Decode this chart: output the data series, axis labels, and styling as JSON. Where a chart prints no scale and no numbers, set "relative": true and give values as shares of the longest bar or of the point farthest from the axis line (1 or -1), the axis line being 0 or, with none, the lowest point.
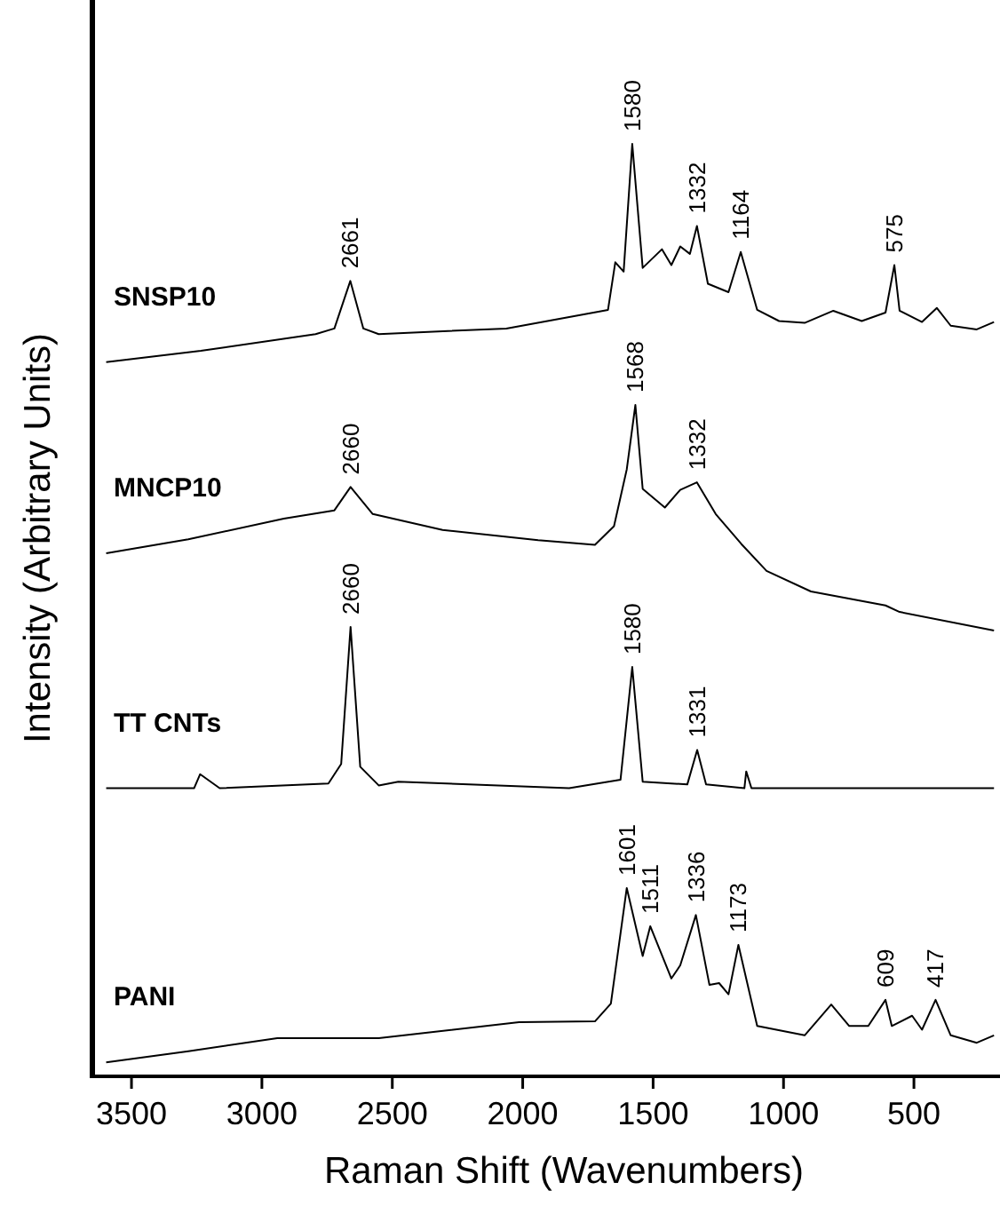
{
  "chart_data": {
    "type": "line",
    "relative": true,
    "xlabel": "Raman Shift (Wavenumbers)",
    "ylabel": "Intensity (Arbitrary Units)",
    "xlim": [
      3650,
      170
    ],
    "xticks": [
      3500,
      3000,
      2500,
      2000,
      1500,
      1000,
      500
    ],
    "grid": false,
    "marker": "none",
    "line_style": "solid",
    "series": [
      {
        "name": "SNSP10",
        "color": "#000000",
        "x": [
          3597,
          3234,
          2794,
          2722,
          2661,
          2611,
          2552,
          2063,
          1673,
          1645,
          1613,
          1580,
          1540,
          1466,
          1430,
          1396,
          1359,
          1332,
          1290,
          1211,
          1164,
          1101,
          1017,
          919,
          809,
          700,
          609,
          575,
          555,
          469,
          412,
          359,
          259,
          193
        ],
        "values": [
          0.766,
          0.778,
          0.796,
          0.802,
          0.853,
          0.802,
          0.796,
          0.802,
          0.822,
          0.873,
          0.863,
          1.0,
          0.867,
          0.887,
          0.87,
          0.89,
          0.882,
          0.912,
          0.85,
          0.841,
          0.884,
          0.822,
          0.81,
          0.808,
          0.821,
          0.81,
          0.819,
          0.87,
          0.821,
          0.809,
          0.824,
          0.805,
          0.801,
          0.809
        ]
      },
      {
        "name": "MNCP10",
        "color": "#000000",
        "x": [
          3597,
          3282,
          2916,
          2722,
          2660,
          2575,
          2307,
          1941,
          1723,
          1650,
          1601,
          1568,
          1540,
          1455,
          1396,
          1332,
          1260,
          1162,
          1065,
          895,
          609,
          555,
          193
        ],
        "values": [
          0.561,
          0.576,
          0.598,
          0.607,
          0.632,
          0.603,
          0.586,
          0.575,
          0.57,
          0.59,
          0.651,
          0.72,
          0.63,
          0.61,
          0.629,
          0.637,
          0.603,
          0.571,
          0.542,
          0.52,
          0.505,
          0.498,
          0.478
        ]
      },
      {
        "name": "TT CNTs",
        "color": "#000000",
        "x": [
          3597,
          3260,
          3237,
          3162,
          2745,
          2696,
          2660,
          2623,
          2552,
          2477,
          1822,
          1625,
          1580,
          1540,
          1369,
          1331,
          1297,
          1150,
          1143,
          1123,
          193
        ],
        "values": [
          0.309,
          0.309,
          0.324,
          0.309,
          0.314,
          0.335,
          0.482,
          0.332,
          0.312,
          0.316,
          0.309,
          0.318,
          0.439,
          0.316,
          0.313,
          0.35,
          0.313,
          0.309,
          0.327,
          0.309,
          0.309
        ]
      },
      {
        "name": "PANI",
        "color": "#000000",
        "x": [
          3597,
          3282,
          2941,
          2552,
          2014,
          1723,
          1662,
          1601,
          1540,
          1511,
          1430,
          1396,
          1336,
          1284,
          1247,
          1211,
          1173,
          1101,
          919,
          817,
          748,
          675,
          609,
          585,
          507,
          469,
          417,
          359,
          259,
          193
        ],
        "values": [
          0.015,
          0.027,
          0.041,
          0.041,
          0.058,
          0.059,
          0.078,
          0.202,
          0.129,
          0.161,
          0.105,
          0.119,
          0.173,
          0.098,
          0.1,
          0.088,
          0.141,
          0.054,
          0.044,
          0.077,
          0.054,
          0.054,
          0.082,
          0.054,
          0.065,
          0.05,
          0.082,
          0.044,
          0.036,
          0.044
        ]
      }
    ],
    "annotations": [
      {
        "text": "2661",
        "x": 2661,
        "y": 0.853
      },
      {
        "text": "1580",
        "x": 1580,
        "y": 1.0
      },
      {
        "text": "1332",
        "x": 1332,
        "y": 0.912
      },
      {
        "text": "1164",
        "x": 1164,
        "y": 0.884
      },
      {
        "text": "575",
        "x": 575,
        "y": 0.87
      },
      {
        "text": "2660",
        "x": 2660,
        "y": 0.632
      },
      {
        "text": "1568",
        "x": 1568,
        "y": 0.72
      },
      {
        "text": "1332",
        "x": 1332,
        "y": 0.637
      },
      {
        "text": "2660",
        "x": 2660,
        "y": 0.482
      },
      {
        "text": "1580",
        "x": 1580,
        "y": 0.439
      },
      {
        "text": "1331",
        "x": 1331,
        "y": 0.35
      },
      {
        "text": "1601",
        "x": 1601,
        "y": 0.202
      },
      {
        "text": "1511",
        "x": 1511,
        "y": 0.161
      },
      {
        "text": "1336",
        "x": 1336,
        "y": 0.173
      },
      {
        "text": "1173",
        "x": 1173,
        "y": 0.141
      },
      {
        "text": "609",
        "x": 609,
        "y": 0.082
      },
      {
        "text": "417",
        "x": 417,
        "y": 0.082
      }
    ]
  }
}
